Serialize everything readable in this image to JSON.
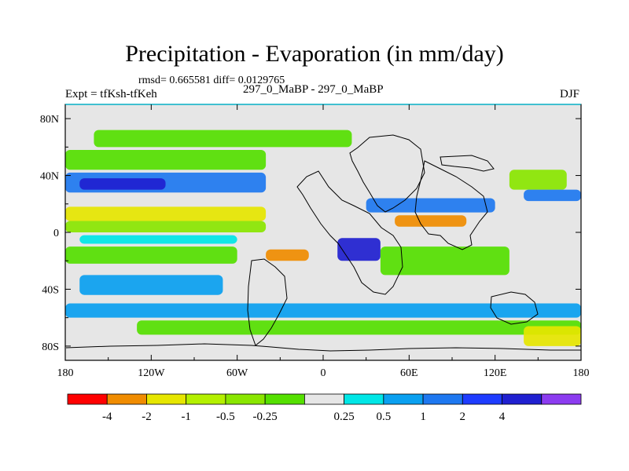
{
  "title": "Precipitation - Evaporation (in mm/day)",
  "stats": "rmsd= 0.665581  diff= 0.0129765",
  "left_label": "Expt = tfKsh-tfKeh",
  "center_label": "297_0_MaBP - 297_0_MaBP",
  "right_label": "DJF",
  "map": {
    "lon_ticks": [
      "180",
      "120W",
      "60W",
      "0",
      "60E",
      "120E",
      "180"
    ],
    "lat_ticks": [
      "80N",
      "40N",
      "0",
      "40S",
      "80S"
    ],
    "lon_values": [
      -180,
      -120,
      -60,
      0,
      60,
      120,
      180
    ],
    "lat_values": [
      80,
      40,
      0,
      -40,
      -80
    ],
    "lon_range": [
      -180,
      180
    ],
    "lat_range": [
      -90,
      90
    ],
    "background_color": "#e6e6e6",
    "coastline_color": "#000000",
    "bands": [
      {
        "name": "north-mid-blue",
        "lon": [
          -180,
          -40
        ],
        "lat": [
          28,
          42
        ],
        "color": "#1e78f0"
      },
      {
        "name": "north-mid-deep",
        "lon": [
          -170,
          -110
        ],
        "lat": [
          30,
          38
        ],
        "color": "#2020d0"
      },
      {
        "name": "north-mid-green",
        "lon": [
          -180,
          -40
        ],
        "lat": [
          44,
          58
        ],
        "color": "#55e000"
      },
      {
        "name": "north-green-upper",
        "lon": [
          -160,
          20
        ],
        "lat": [
          60,
          72
        ],
        "color": "#55e000"
      },
      {
        "name": "tropic-yellow-west",
        "lon": [
          -180,
          -40
        ],
        "lat": [
          8,
          18
        ],
        "color": "#e6e600"
      },
      {
        "name": "tropic-green-west",
        "lon": [
          -180,
          -40
        ],
        "lat": [
          0,
          8
        ],
        "color": "#8ae600"
      },
      {
        "name": "equator-cyan-west",
        "lon": [
          -170,
          -60
        ],
        "lat": [
          -8,
          -2
        ],
        "color": "#00e6e6"
      },
      {
        "name": "south-green-west",
        "lon": [
          -180,
          -60
        ],
        "lat": [
          -22,
          -10
        ],
        "color": "#55e000"
      },
      {
        "name": "south-blue-west",
        "lon": [
          -170,
          -70
        ],
        "lat": [
          -44,
          -30
        ],
        "color": "#0aa0f0"
      },
      {
        "name": "atlantic-orange",
        "lon": [
          -40,
          -10
        ],
        "lat": [
          -20,
          -12
        ],
        "color": "#f08c00"
      },
      {
        "name": "africa-deep",
        "lon": [
          10,
          40
        ],
        "lat": [
          -20,
          -4
        ],
        "color": "#2020d0"
      },
      {
        "name": "asia-orange",
        "lon": [
          50,
          100
        ],
        "lat": [
          4,
          12
        ],
        "color": "#f08c00"
      },
      {
        "name": "asia-blue",
        "lon": [
          30,
          120
        ],
        "lat": [
          14,
          24
        ],
        "color": "#1e78f0"
      },
      {
        "name": "indian-green",
        "lon": [
          40,
          130
        ],
        "lat": [
          -30,
          -10
        ],
        "color": "#55e000"
      },
      {
        "name": "southern-blue",
        "lon": [
          -180,
          180
        ],
        "lat": [
          -60,
          -50
        ],
        "color": "#0aa0f0"
      },
      {
        "name": "southern-green",
        "lon": [
          -130,
          180
        ],
        "lat": [
          -72,
          -62
        ],
        "color": "#55e000"
      },
      {
        "name": "antarctic-yellow",
        "lon": [
          140,
          180
        ],
        "lat": [
          -80,
          -66
        ],
        "color": "#e6e600"
      },
      {
        "name": "north-pacific-green",
        "lon": [
          130,
          170
        ],
        "lat": [
          30,
          44
        ],
        "color": "#8ae600"
      },
      {
        "name": "north-east-blue",
        "lon": [
          140,
          180
        ],
        "lat": [
          22,
          30
        ],
        "color": "#1e78f0"
      }
    ]
  },
  "colorbar": {
    "colors": [
      "#ff0000",
      "#f08c00",
      "#e6e600",
      "#b4f000",
      "#8ae600",
      "#55e000",
      "#e6e6e6",
      "#00e6e6",
      "#0aa0f0",
      "#1e78f0",
      "#1e3cff",
      "#2020d0",
      "#8c3cf0"
    ],
    "labels": [
      "-4",
      "-2",
      "-1",
      "-0.5",
      "-0.25",
      "0.25",
      "0.5",
      "1",
      "2",
      "4"
    ]
  }
}
